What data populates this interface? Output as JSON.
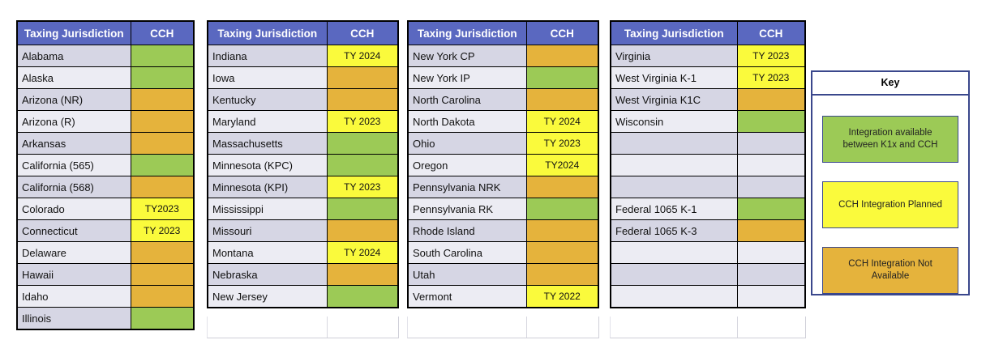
{
  "colors": {
    "header_bg": "#5A68C0",
    "header_text": "#FFFFFF",
    "band_dark": "#D6D6E4",
    "band_light": "#ECECF3",
    "status_green": "#9CCA56",
    "status_yellow": "#FAFA3C",
    "status_gold": "#E5B33C",
    "table_border": "#000000",
    "key_border": "#3A478C"
  },
  "column_headers": {
    "jurisdiction": "Taxing Jurisdiction",
    "cch": "CCH"
  },
  "tables": [
    {
      "rows": [
        {
          "label": "Alabama",
          "status": "green",
          "value": ""
        },
        {
          "label": "Alaska",
          "status": "green",
          "value": ""
        },
        {
          "label": "Arizona (NR)",
          "status": "gold",
          "value": ""
        },
        {
          "label": "Arizona (R)",
          "status": "gold",
          "value": ""
        },
        {
          "label": "Arkansas",
          "status": "gold",
          "value": ""
        },
        {
          "label": "California (565)",
          "status": "green",
          "value": ""
        },
        {
          "label": "California (568)",
          "status": "gold",
          "value": ""
        },
        {
          "label": "Colorado",
          "status": "yellow",
          "value": "TY2023"
        },
        {
          "label": "Connecticut",
          "status": "yellow",
          "value": "TY 2023"
        },
        {
          "label": "Delaware",
          "status": "gold",
          "value": ""
        },
        {
          "label": "Hawaii",
          "status": "gold",
          "value": ""
        },
        {
          "label": "Idaho",
          "status": "gold",
          "value": ""
        },
        {
          "label": "Illinois",
          "status": "green",
          "value": ""
        }
      ]
    },
    {
      "rows": [
        {
          "label": "Indiana",
          "status": "yellow",
          "value": "TY 2024"
        },
        {
          "label": "Iowa",
          "status": "gold",
          "value": ""
        },
        {
          "label": "Kentucky",
          "status": "gold",
          "value": ""
        },
        {
          "label": "Maryland",
          "status": "yellow",
          "value": "TY 2023"
        },
        {
          "label": "Massachusetts",
          "status": "green",
          "value": ""
        },
        {
          "label": "Minnesota (KPC)",
          "status": "green",
          "value": ""
        },
        {
          "label": "Minnesota (KPI)",
          "status": "yellow",
          "value": "TY 2023"
        },
        {
          "label": "Mississippi",
          "status": "green",
          "value": ""
        },
        {
          "label": "Missouri",
          "status": "gold",
          "value": ""
        },
        {
          "label": "Montana",
          "status": "yellow",
          "value": "TY 2024"
        },
        {
          "label": "Nebraska",
          "status": "gold",
          "value": ""
        },
        {
          "label": "New Jersey",
          "status": "green",
          "value": ""
        }
      ]
    },
    {
      "rows": [
        {
          "label": "New York CP",
          "status": "gold",
          "value": ""
        },
        {
          "label": "New York IP",
          "status": "green",
          "value": ""
        },
        {
          "label": "North Carolina",
          "status": "gold",
          "value": ""
        },
        {
          "label": "North Dakota",
          "status": "yellow",
          "value": "TY 2024"
        },
        {
          "label": "Ohio",
          "status": "yellow",
          "value": "TY 2023"
        },
        {
          "label": "Oregon",
          "status": "yellow",
          "value": "TY2024"
        },
        {
          "label": "Pennsylvania NRK",
          "status": "gold",
          "value": ""
        },
        {
          "label": "Pennsylvania RK",
          "status": "green",
          "value": ""
        },
        {
          "label": "Rhode Island",
          "status": "gold",
          "value": ""
        },
        {
          "label": "South Carolina",
          "status": "gold",
          "value": ""
        },
        {
          "label": "Utah",
          "status": "gold",
          "value": ""
        },
        {
          "label": "Vermont",
          "status": "yellow",
          "value": "TY 2022"
        }
      ]
    },
    {
      "rows": [
        {
          "label": "Virginia",
          "status": "yellow",
          "value": "TY 2023"
        },
        {
          "label": "West Virginia K-1",
          "status": "yellow",
          "value": "TY 2023"
        },
        {
          "label": "West Virginia K1C",
          "status": "gold",
          "value": ""
        },
        {
          "label": "Wisconsin",
          "status": "green",
          "value": ""
        },
        {
          "label": "",
          "status": "band",
          "value": ""
        },
        {
          "label": "",
          "status": "band",
          "value": ""
        },
        {
          "label": "",
          "status": "band",
          "value": ""
        },
        {
          "label": "Federal 1065 K-1",
          "status": "green",
          "value": ""
        },
        {
          "label": "Federal 1065 K-3",
          "status": "gold",
          "value": ""
        },
        {
          "label": "",
          "status": "band",
          "value": ""
        },
        {
          "label": "",
          "status": "band",
          "value": ""
        },
        {
          "label": "",
          "status": "band",
          "value": ""
        }
      ]
    }
  ],
  "key": {
    "title": "Key",
    "items": [
      {
        "label": "Integration available between K1x and CCH",
        "color": "green"
      },
      {
        "label": "CCH Integration Planned",
        "color": "yellow"
      },
      {
        "label": "CCH Integration Not Available",
        "color": "gold"
      }
    ]
  }
}
